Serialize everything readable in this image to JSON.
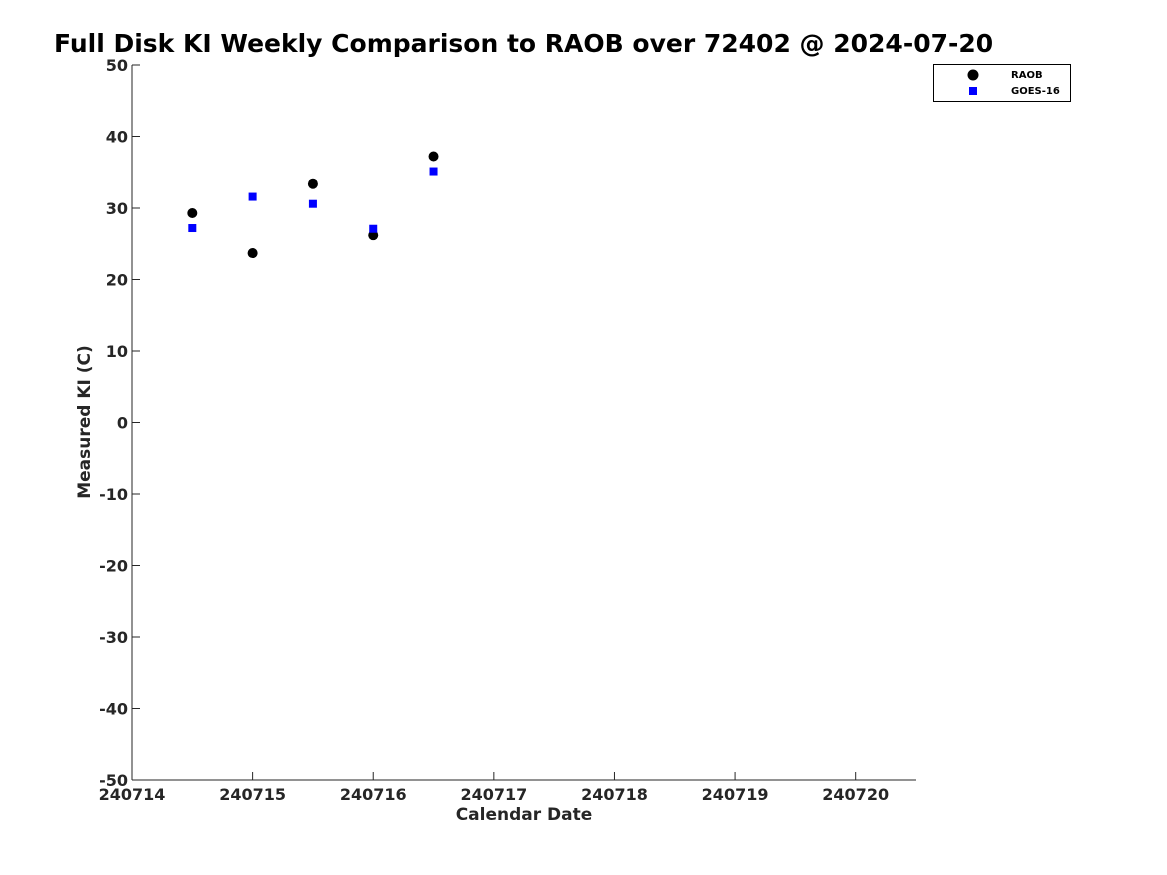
{
  "chart_data": {
    "type": "scatter",
    "title": "Full Disk KI Weekly Comparison to RAOB over 72402 @ 2024-07-20",
    "xlabel": "Calendar Date",
    "ylabel": "Measured KI (C)",
    "xlim": [
      240714,
      240720.5
    ],
    "ylim": [
      -50,
      50
    ],
    "xticks": [
      240714,
      240715,
      240716,
      240717,
      240718,
      240719,
      240720
    ],
    "xtick_labels": [
      "240714",
      "240715",
      "240716",
      "240717",
      "240718",
      "240719",
      "240720"
    ],
    "yticks": [
      50,
      40,
      30,
      20,
      10,
      0,
      -10,
      -20,
      -30,
      -40,
      -50
    ],
    "ytick_labels": [
      "50",
      "40",
      "30",
      "20",
      "10",
      "0",
      "-10",
      "-20",
      "-30",
      "-40",
      "-50"
    ],
    "grid": false,
    "legend_position": "top-right",
    "series": [
      {
        "name": "RAOB",
        "marker": "circle",
        "color": "#000000",
        "x": [
          240714.5,
          240715,
          240715.5,
          240716,
          240716.5
        ],
        "y": [
          29.3,
          23.7,
          33.4,
          26.2,
          37.2
        ]
      },
      {
        "name": "GOES-16",
        "marker": "square",
        "color": "#0000ff",
        "x": [
          240714.5,
          240715,
          240715.5,
          240716,
          240716.5
        ],
        "y": [
          27.2,
          31.6,
          30.6,
          27.1,
          35.1
        ]
      }
    ]
  }
}
